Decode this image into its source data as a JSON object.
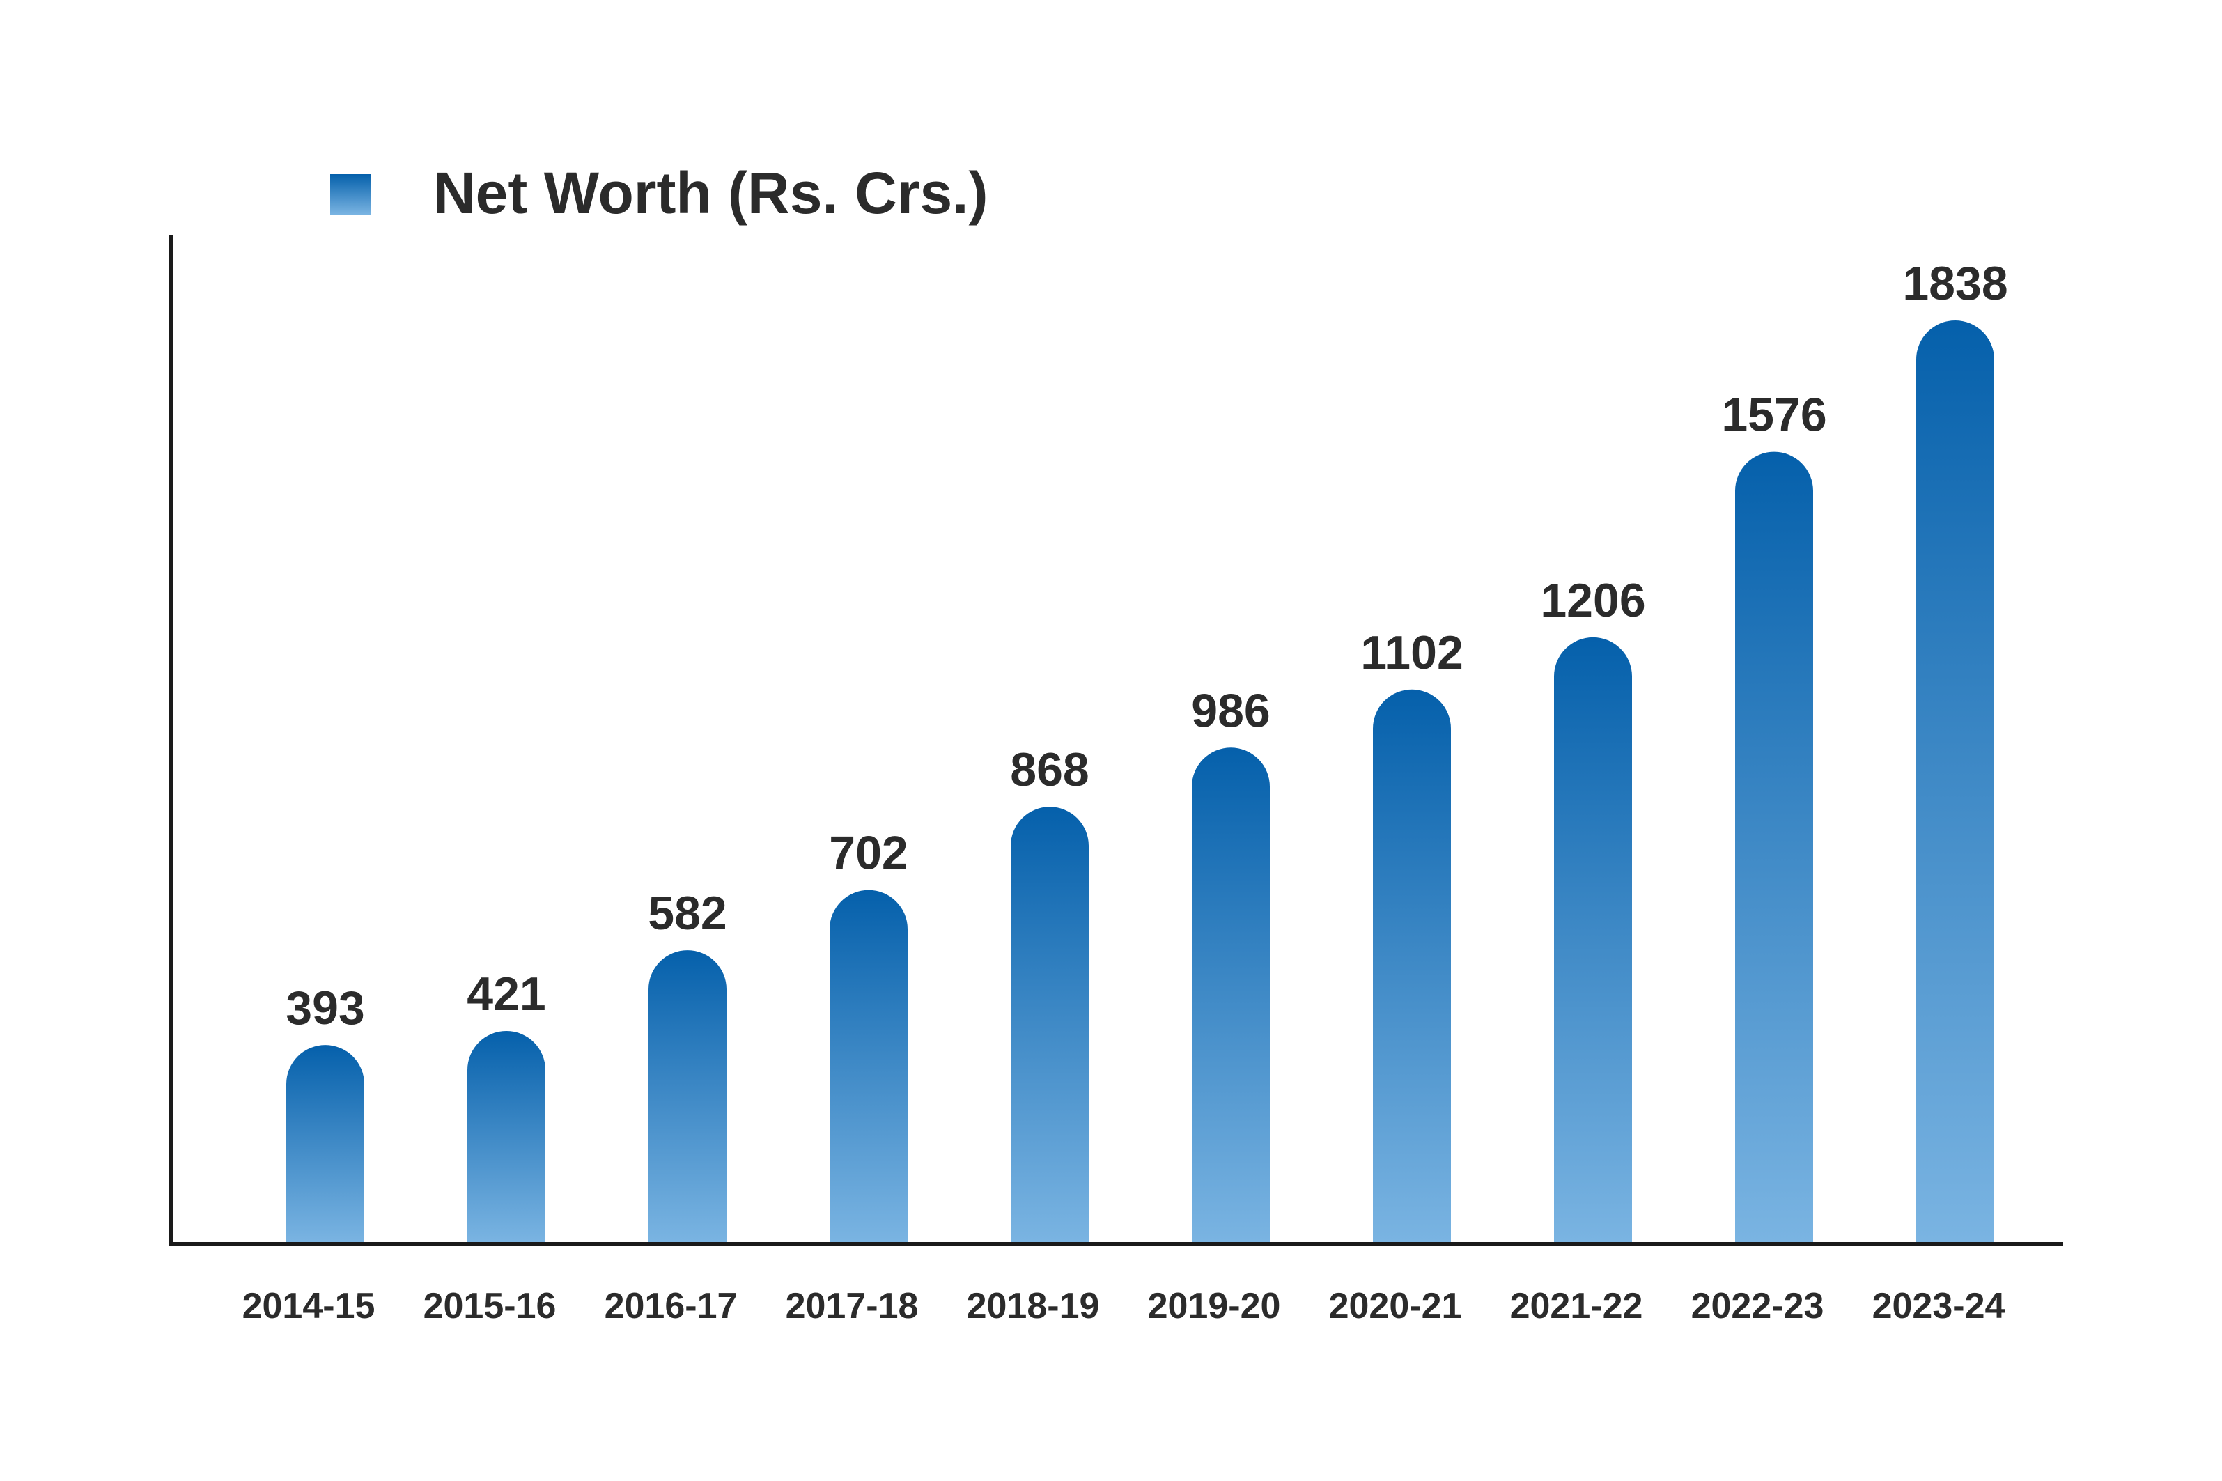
{
  "chart_data": {
    "type": "bar",
    "categories": [
      "2014-15",
      "2015-16",
      "2016-17",
      "2017-18",
      "2018-19",
      "2019-20",
      "2020-21",
      "2021-22",
      "2022-23",
      "2023-24"
    ],
    "series": [
      {
        "name": "Net Worth (Rs. Crs.)",
        "values": [
          393,
          421,
          582,
          702,
          868,
          986,
          1102,
          1206,
          1576,
          1838
        ]
      }
    ],
    "title": "",
    "xlabel": "",
    "ylabel": "",
    "ylim": [
      0,
      1838
    ],
    "grid": false,
    "legend_position": "top-left",
    "data_labels": true,
    "colors": {
      "bar_top": "#0560ab",
      "bar_bottom": "#7ab4e2",
      "axis": "#1a1a1a",
      "text": "#2b2b2b"
    }
  }
}
